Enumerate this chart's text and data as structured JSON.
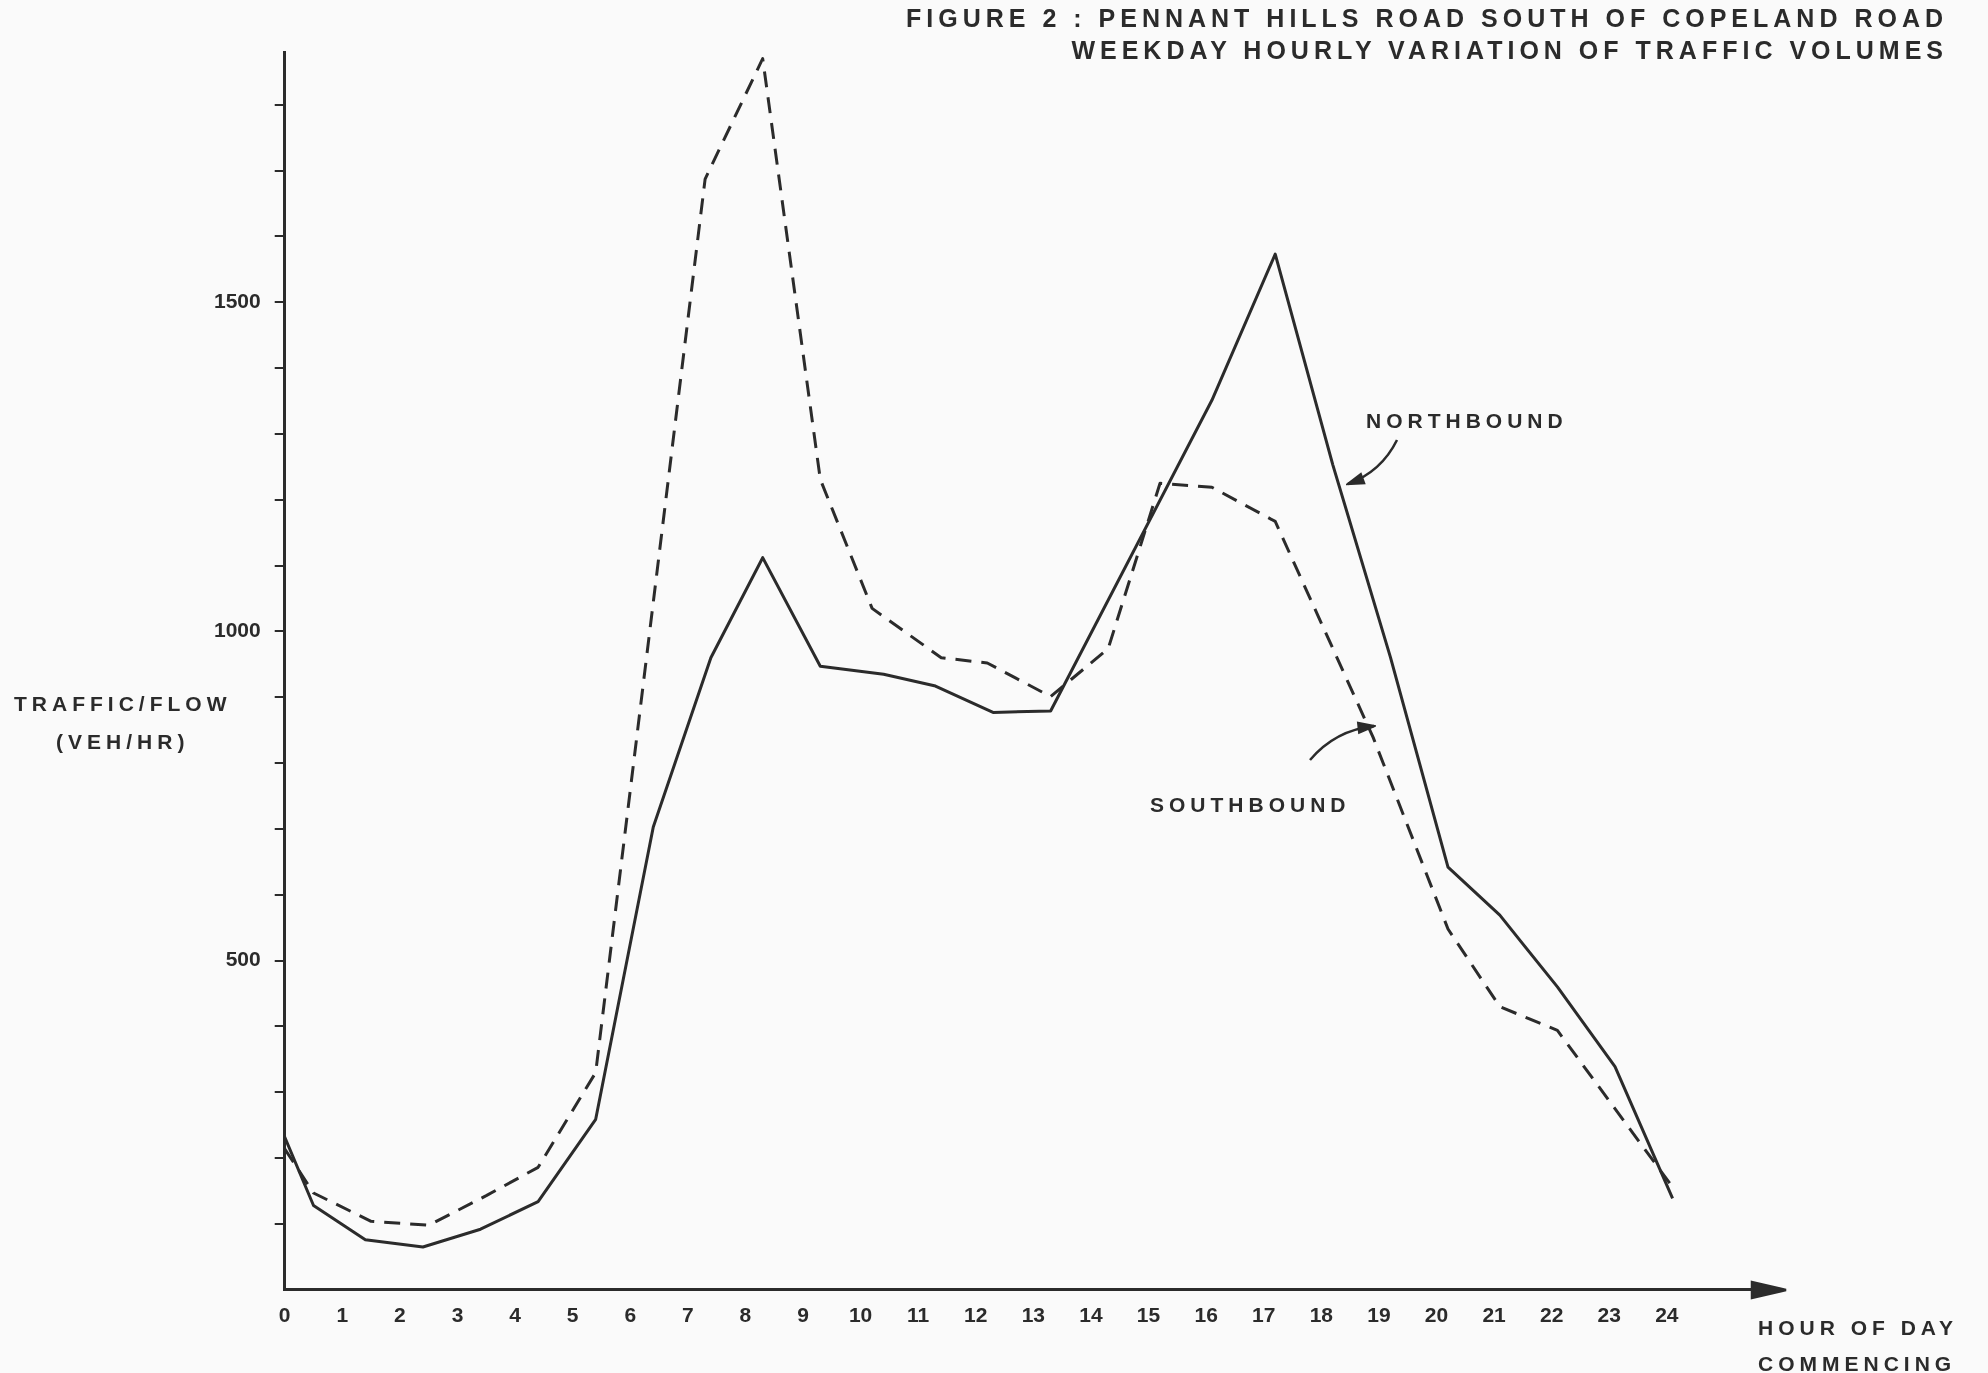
{
  "chart_data": {
    "type": "line",
    "title": "FIGURE 2 : PENNANT HILLS ROAD SOUTH OF COPELAND ROAD",
    "subtitle": "WEEKDAY HOURLY VARIATION OF TRAFFIC VOLUMES",
    "xlabel": "HOUR OF DAY\nCOMMENCING",
    "ylabel": "TRAFFIC/FLOW\n(VEH/HR)",
    "xlim": [
      0,
      26
    ],
    "xticks": [
      0,
      1,
      2,
      3,
      4,
      5,
      6,
      7,
      8,
      9,
      10,
      11,
      12,
      13,
      14,
      15,
      16,
      17,
      18,
      19,
      20,
      21,
      22,
      23,
      24
    ],
    "ylim": [
      0,
      1880
    ],
    "yticks": [
      {
        "value": 100,
        "label": null
      },
      {
        "value": 200,
        "label": null
      },
      {
        "value": 300,
        "label": null
      },
      {
        "value": 400,
        "label": null
      },
      500,
      {
        "value": 600,
        "label": null
      },
      {
        "value": 700,
        "label": null
      },
      {
        "value": 800,
        "label": null
      },
      {
        "value": 900,
        "label": null
      },
      1000,
      {
        "value": 1100,
        "label": null
      },
      {
        "value": 1200,
        "label": null
      },
      {
        "value": 1300,
        "label": null
      },
      {
        "value": 1400,
        "label": null
      },
      1500,
      {
        "value": 1600,
        "label": null
      },
      {
        "value": 1700,
        "label": null
      },
      {
        "value": 1800,
        "label": null
      }
    ],
    "grid": false,
    "legend": false,
    "marker": "none",
    "series": [
      {
        "name": "NORTHBOUND",
        "color": "#2b2b2b",
        "line_style": "solid",
        "x": [
          0,
          0.5,
          1.4,
          2.4,
          3.4,
          4.4,
          5.4,
          6.4,
          7.4,
          8.3,
          9.3,
          10.4,
          11.3,
          12.3,
          13.3,
          16.1,
          17.2,
          18.2,
          19.2,
          20.2,
          21.1,
          22.1,
          23.1,
          24.1
        ],
        "values": [
          232,
          128,
          76,
          65,
          92,
          134,
          259,
          703,
          960,
          1112,
          947,
          935,
          917,
          877,
          879,
          1351,
          1573,
          1253,
          961,
          642,
          569,
          460,
          339,
          139
        ]
      },
      {
        "name": "SOUTHBOUND",
        "color": "#2b2b2b",
        "line_style": "dashed",
        "x": [
          0,
          0.5,
          1.5,
          2.5,
          3.5,
          4.4,
          5.4,
          7.3,
          8.3,
          9.3,
          10.2,
          11.4,
          12.2,
          13.3,
          14.3,
          15.2,
          16.1,
          17.2,
          18.9,
          20.2,
          21.1,
          22.1,
          24.1
        ],
        "values": [
          214,
          147,
          104,
          98,
          143,
          186,
          330,
          1687,
          1870,
          1231,
          1035,
          960,
          952,
          901,
          974,
          1225,
          1219,
          1167,
          839,
          548,
          430,
          394,
          156
        ]
      }
    ]
  }
}
